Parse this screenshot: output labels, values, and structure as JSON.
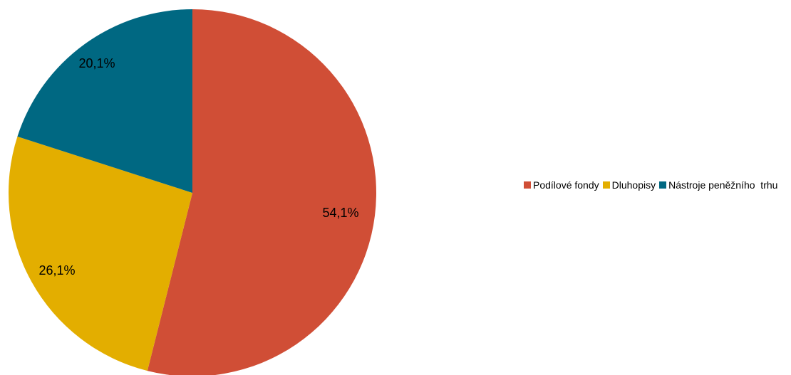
{
  "chart_data": {
    "type": "pie",
    "title": "",
    "legend_position": "right",
    "slices": [
      {
        "label": "Podílové fondy",
        "value": 54.1,
        "display": "54,1%",
        "color": "#D04E36"
      },
      {
        "label": "Dluhopisy",
        "value": 26.1,
        "display": "26,1%",
        "color": "#E3AE00"
      },
      {
        "label": "Nástroje peněžního  trhu",
        "value": 20.1,
        "display": "20,1%",
        "color": "#006882"
      }
    ]
  }
}
